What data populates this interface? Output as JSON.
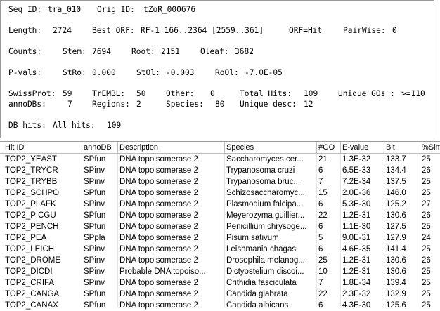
{
  "summary": {
    "seq_id_label": "Seq ID:",
    "seq_id": "tra_010",
    "orig_id_label": "Orig ID:",
    "orig_id": "tZoR_000676",
    "length_label": "Length:",
    "length": "2724",
    "best_orf_label": "Best ORF:",
    "best_orf": "RF-1 166..2364 [2559..361]",
    "orf_label": "ORF=Hit",
    "pairwise_label": "PairWise:",
    "pairwise": "0",
    "counts_label": "Counts:",
    "stem_label": "Stem:",
    "stem": "7694",
    "root_label": "Root:",
    "root": "2151",
    "oleaf_label": "Oleaf:",
    "oleaf": "3682",
    "pvals_label": "P-vals:",
    "stro_label": "StRo:",
    "stro": "0.000",
    "stol_label": "StOl:",
    "stol": "-0.003",
    "rool_label": "RoOl:",
    "rool": "-7.0E-05",
    "swissprot_label": "SwissProt:",
    "swissprot": "59",
    "trembl_label": "TrEMBL:",
    "trembl": "50",
    "other_label": "Other:",
    "other": "0",
    "total_hits_label": "Total Hits:",
    "total_hits": "109",
    "unique_gos_label": "Unique GOs :",
    "unique_gos": ">=110",
    "annodbs_label": "annoDBs:",
    "annodbs": "7",
    "regions_label": "Regions:",
    "regions": "2",
    "species_label": "Species:",
    "species": "80",
    "unique_desc_label": "Unique desc:",
    "unique_desc": "12",
    "db_hits_label": "DB hits:",
    "all_hits_label": "All hits:",
    "all_hits": "109"
  },
  "table": {
    "columns": [
      "Hit ID",
      "annoDB",
      "Description",
      "Species",
      "#GO",
      "E-value",
      "Bit",
      "%Sim"
    ],
    "rows": [
      [
        "TOP2_YEAST",
        "SPfun",
        "DNA topoisomerase 2",
        "Saccharomyces cer...",
        "21",
        "1.3E-32",
        "133.7",
        "25"
      ],
      [
        "TOP2_TRYCR",
        "SPinv",
        "DNA topoisomerase 2",
        "Trypanosoma cruzi",
        "6",
        "6.5E-33",
        "134.4",
        "26"
      ],
      [
        "TOP2_TRYBB",
        "SPinv",
        "DNA topoisomerase 2",
        "Trypanosoma bruc...",
        "7",
        "7.2E-34",
        "137.5",
        "25"
      ],
      [
        "TOP2_SCHPO",
        "SPfun",
        "DNA topoisomerase 2",
        "Schizosaccharomyc...",
        "15",
        "2.0E-36",
        "146.0",
        "25"
      ],
      [
        "TOP2_PLAFK",
        "SPinv",
        "DNA topoisomerase 2",
        "Plasmodium falcipa...",
        "6",
        "5.3E-30",
        "125.2",
        "27"
      ],
      [
        "TOP2_PICGU",
        "SPfun",
        "DNA topoisomerase 2",
        "Meyerozyma guillier...",
        "22",
        "1.2E-31",
        "130.6",
        "26"
      ],
      [
        "TOP2_PENCH",
        "SPfun",
        "DNA topoisomerase 2",
        "Penicillium chrysoge...",
        "6",
        "1.1E-30",
        "127.5",
        "25"
      ],
      [
        "TOP2_PEA",
        "SPpla",
        "DNA topoisomerase 2",
        "Pisum sativum",
        "5",
        "9.0E-31",
        "127.9",
        "24"
      ],
      [
        "TOP2_LEICH",
        "SPinv",
        "DNA topoisomerase 2",
        "Leishmania chagasi",
        "6",
        "4.6E-35",
        "141.4",
        "25"
      ],
      [
        "TOP2_DROME",
        "SPinv",
        "DNA topoisomerase 2",
        "Drosophila melanog...",
        "25",
        "1.2E-31",
        "130.6",
        "26"
      ],
      [
        "TOP2_DICDI",
        "SPinv",
        "Probable DNA topoiso...",
        "Dictyostelium discoi...",
        "10",
        "1.2E-31",
        "130.6",
        "25"
      ],
      [
        "TOP2_CRIFA",
        "SPinv",
        "DNA topoisomerase 2",
        "Crithidia fasciculata",
        "7",
        "1.8E-34",
        "139.4",
        "25"
      ],
      [
        "TOP2_CANGA",
        "SPfun",
        "DNA topoisomerase 2",
        "Candida glabrata",
        "22",
        "2.3E-32",
        "132.9",
        "25"
      ],
      [
        "TOP2_CANAX",
        "SPfun",
        "DNA topoisomerase 2",
        "Candida albicans",
        "6",
        "4.3E-30",
        "125.6",
        "25"
      ]
    ]
  }
}
